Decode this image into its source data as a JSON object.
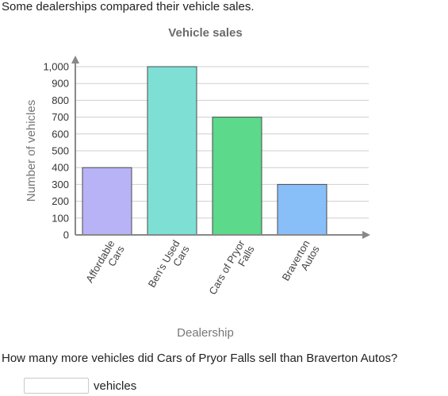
{
  "intro_text": "Some dealerships compared their vehicle sales.",
  "question_text": "How many more vehicles did Cars of Pryor Falls sell than Braverton Autos?",
  "answer": {
    "value": "",
    "unit": "vehicles"
  },
  "chart_data": {
    "type": "bar",
    "title": "Vehicle sales",
    "xlabel": "Dealership",
    "ylabel": "Number of vehicles",
    "categories": [
      "Affordable Cars",
      "Ben's Used Cars",
      "Cars of Pryor Falls",
      "Braverton Autos"
    ],
    "category_lines": [
      [
        "Affordable",
        "Cars"
      ],
      [
        "Ben's Used",
        "Cars"
      ],
      [
        "Cars of Pryor",
        "Falls"
      ],
      [
        "Braverton",
        "Autos"
      ]
    ],
    "values": [
      400,
      1000,
      700,
      300
    ],
    "colors": [
      "#b8b3f7",
      "#7ee0d4",
      "#5cd98a",
      "#89bff9"
    ],
    "ylim": [
      0,
      1000
    ],
    "yticks": [
      0,
      100,
      200,
      300,
      400,
      500,
      600,
      700,
      800,
      900,
      1000
    ],
    "ytick_labels": [
      "0",
      "100",
      "200",
      "300",
      "400",
      "500",
      "600",
      "700",
      "800",
      "900",
      "1,000"
    ],
    "grid": true
  }
}
